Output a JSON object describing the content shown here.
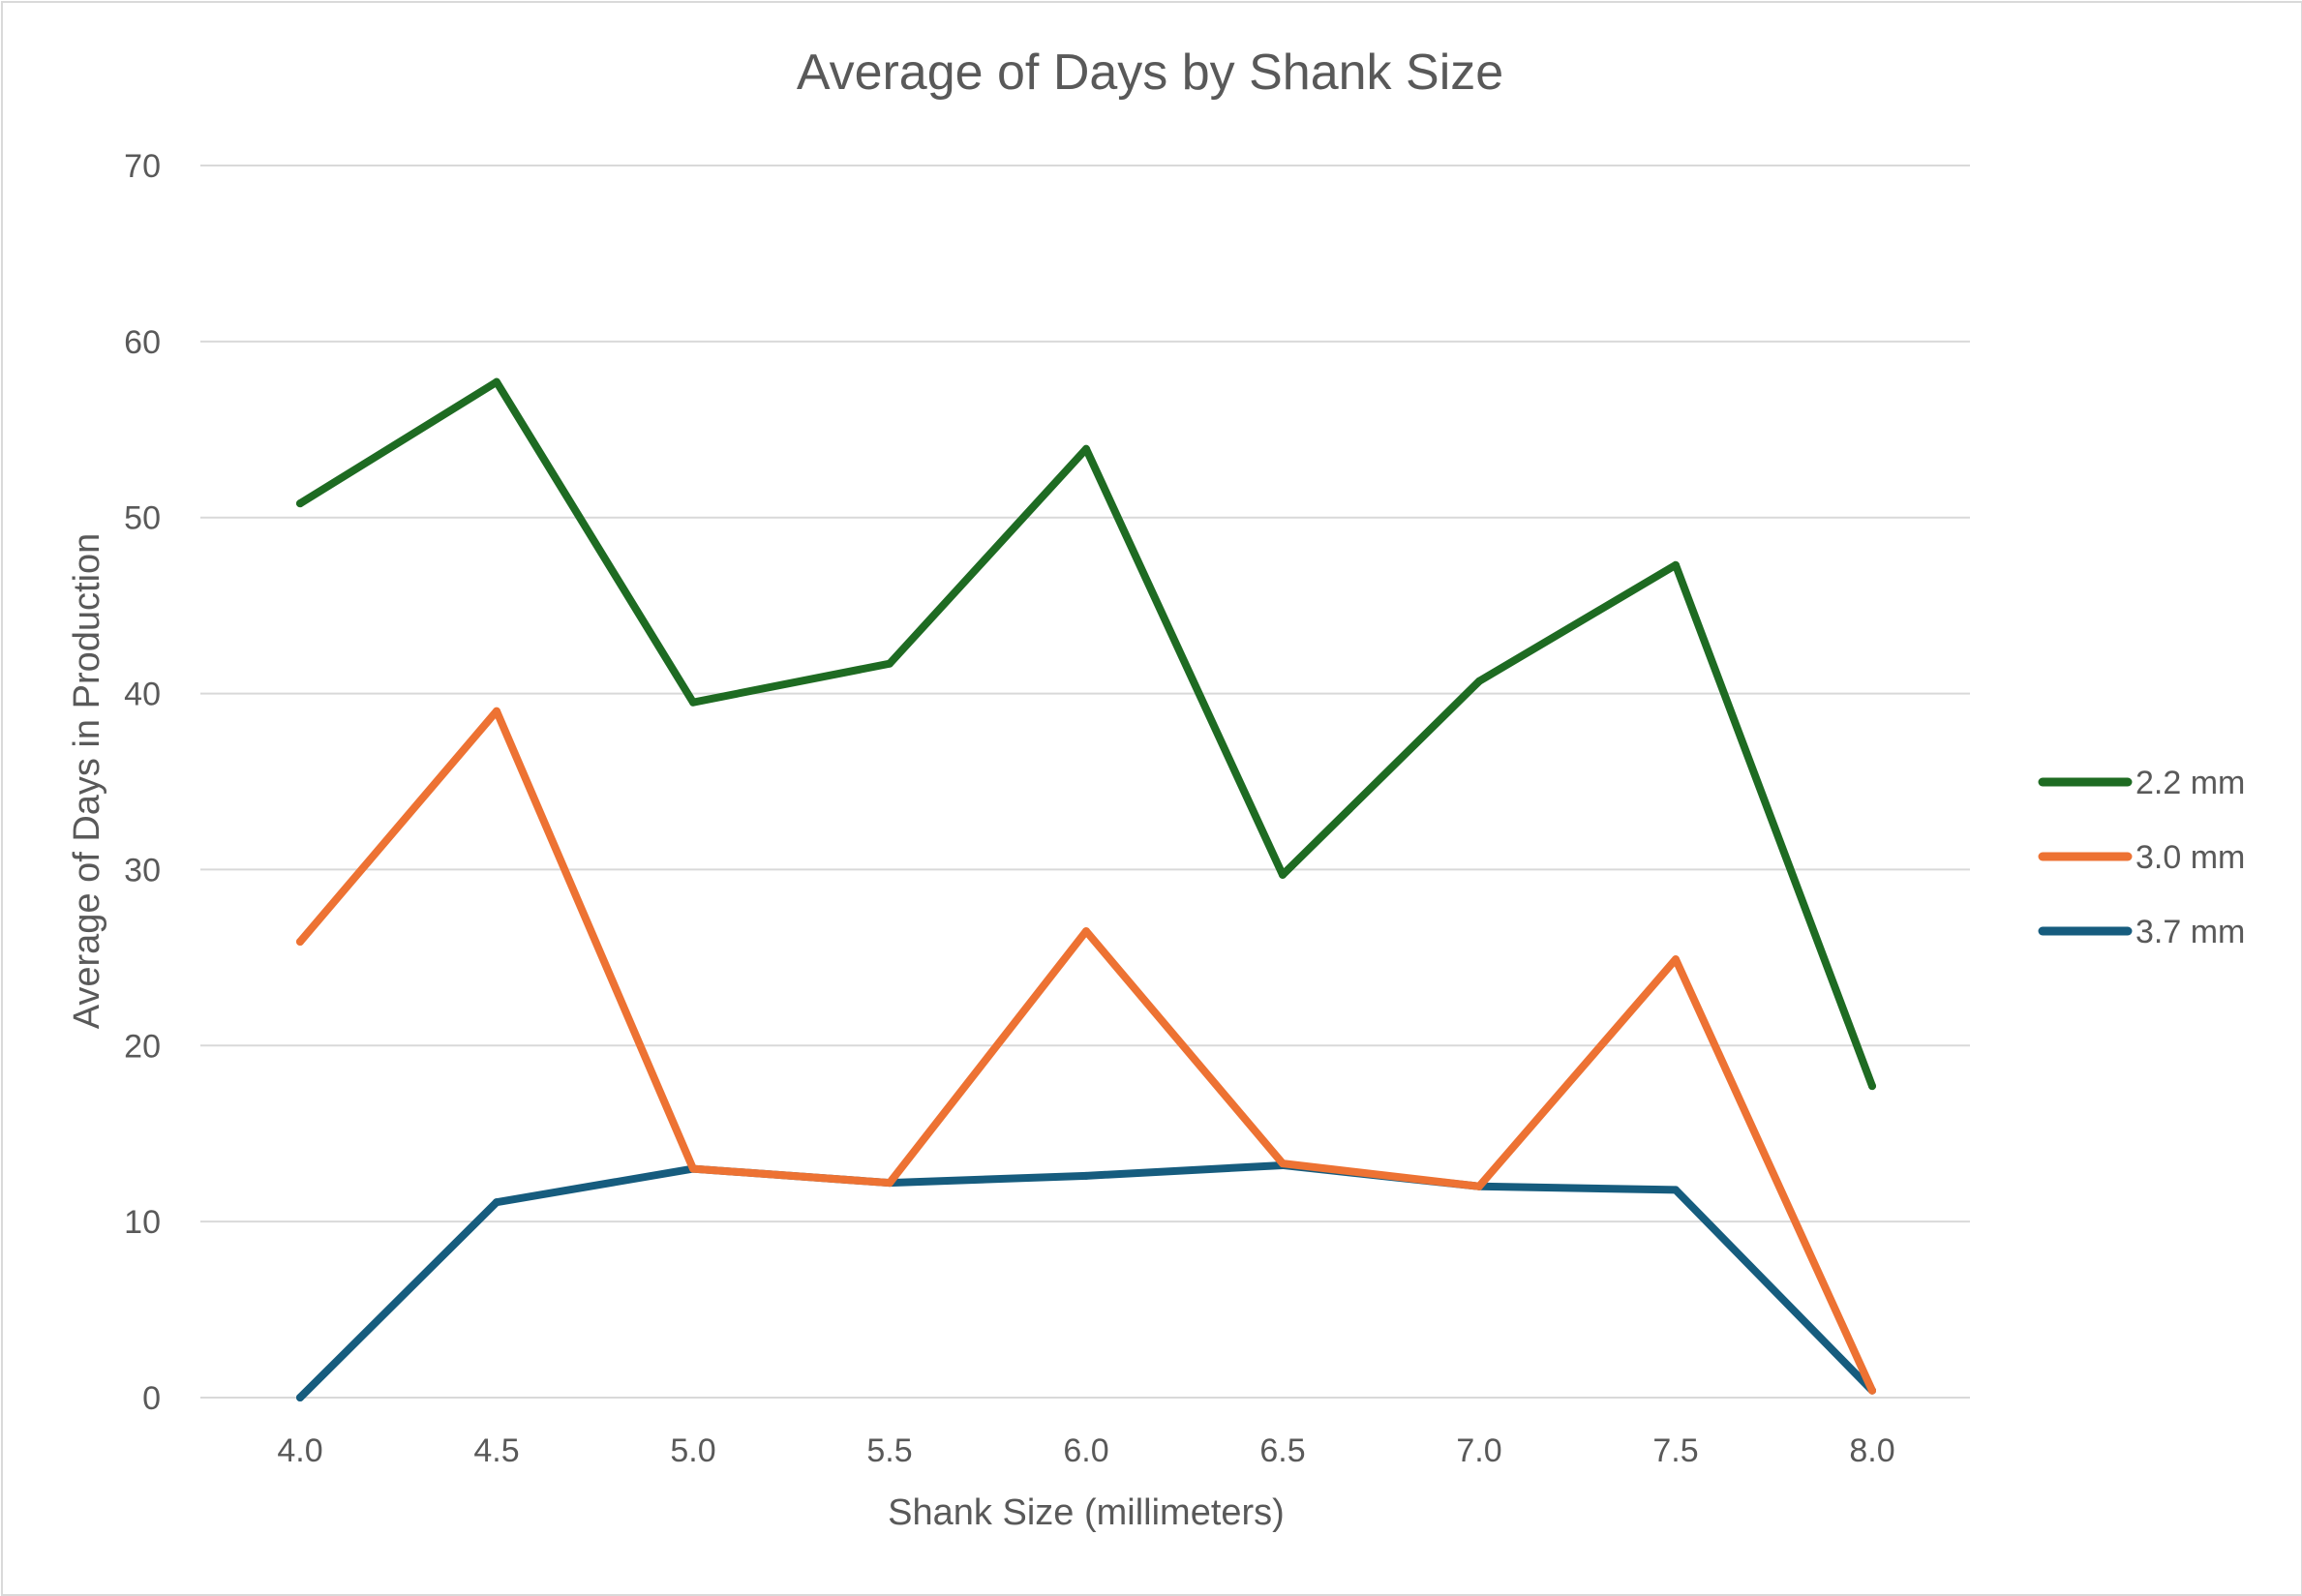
{
  "chart_data": {
    "type": "line",
    "title": "Average of Days by Shank Size",
    "xlabel": "Shank Size (millimeters)",
    "ylabel": "Average of Days in Production",
    "categories": [
      "4.0",
      "4.5",
      "5.0",
      "5.5",
      "6.0",
      "6.5",
      "7.0",
      "7.5",
      "8.0"
    ],
    "ylim": [
      0,
      70
    ],
    "yticks": [
      "0",
      "10",
      "20",
      "30",
      "40",
      "50",
      "60",
      "70"
    ],
    "grid": true,
    "legend_position": "right",
    "series": [
      {
        "name": "2.2 mm",
        "color": "#1e6b22",
        "values": [
          50.8,
          57.7,
          39.5,
          41.7,
          53.9,
          29.7,
          40.7,
          47.3,
          17.7
        ]
      },
      {
        "name": "3.0 mm",
        "color": "#ed7233",
        "values": [
          25.9,
          39.0,
          13.0,
          12.2,
          26.5,
          13.3,
          12.0,
          24.9,
          0.4
        ]
      },
      {
        "name": "3.7 mm",
        "color": "#165c7e",
        "values": [
          0.0,
          11.1,
          13.0,
          12.2,
          12.6,
          13.2,
          12.0,
          11.8,
          0.4
        ]
      }
    ]
  }
}
